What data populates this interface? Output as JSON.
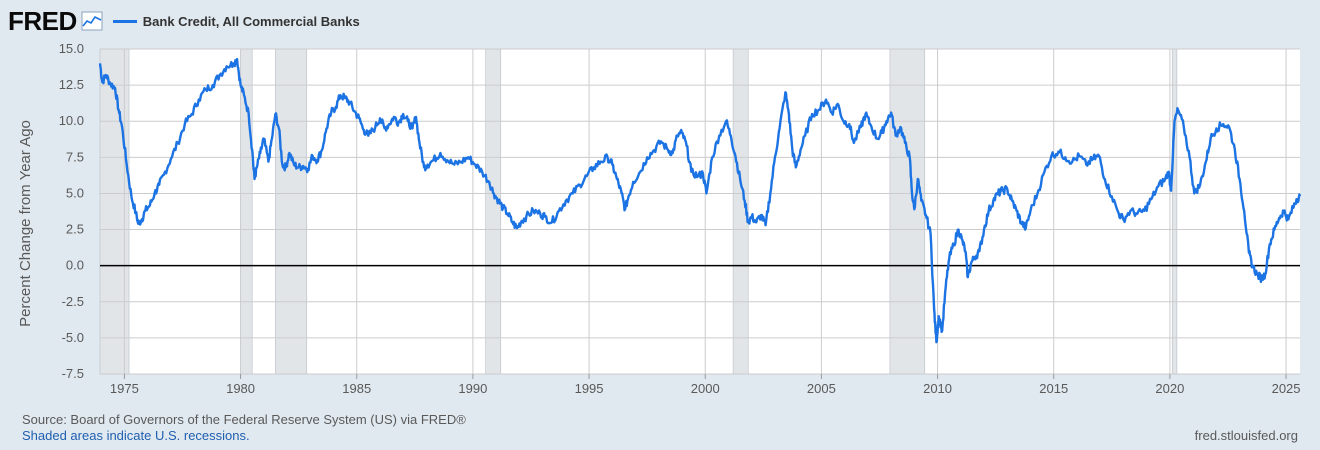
{
  "header": {
    "logo_text": "FRED",
    "logo_icon": "line-chart-icon",
    "series_label": "Bank Credit, All Commercial Banks"
  },
  "footer": {
    "source": "Source: Board of Governors of the Federal Reserve System (US) via FRED®",
    "recessions_note": "Shaded areas indicate U.S. recessions.",
    "site": "fred.stlouisfed.org"
  },
  "colors": {
    "series": "#1c73e3",
    "background": "#e1e9f0",
    "plot_bg": "#ffffff",
    "recession": "#e1e5e8",
    "grid": "#cccccc"
  },
  "chart_data": {
    "type": "line",
    "title": "",
    "xlabel": "",
    "ylabel": "Percent Change from Year Ago",
    "xlim": [
      1973.95,
      2025.6
    ],
    "ylim": [
      -7.5,
      15.0
    ],
    "grid": true,
    "legend_position": "top-left",
    "y_ticks": [
      "15.0",
      "12.5",
      "10.0",
      "7.5",
      "5.0",
      "2.5",
      "0.0",
      "-2.5",
      "-5.0",
      "-7.5"
    ],
    "x_ticks": [
      "1975",
      "1980",
      "1985",
      "1990",
      "1995",
      "2000",
      "2005",
      "2010",
      "2015",
      "2020",
      "2025"
    ],
    "zero_line": 0,
    "recessions": [
      [
        1973.95,
        1975.2
      ],
      [
        1980.0,
        1980.5
      ],
      [
        1981.5,
        1982.85
      ],
      [
        1990.55,
        1991.2
      ],
      [
        2001.2,
        2001.85
      ],
      [
        2007.95,
        2009.45
      ],
      [
        2020.1,
        2020.3
      ]
    ],
    "series": [
      {
        "name": "Bank Credit, All Commercial Banks",
        "points": [
          [
            1973.95,
            14.0
          ],
          [
            1974.05,
            12.7
          ],
          [
            1974.2,
            13.2
          ],
          [
            1974.4,
            12.6
          ],
          [
            1974.6,
            12.3
          ],
          [
            1974.75,
            10.8
          ],
          [
            1974.9,
            9.6
          ],
          [
            1975.1,
            7.0
          ],
          [
            1975.3,
            4.8
          ],
          [
            1975.5,
            3.6
          ],
          [
            1975.6,
            2.9
          ],
          [
            1975.75,
            3.2
          ],
          [
            1975.9,
            3.8
          ],
          [
            1976.1,
            4.2
          ],
          [
            1976.3,
            5.0
          ],
          [
            1976.5,
            5.6
          ],
          [
            1976.7,
            6.3
          ],
          [
            1977.0,
            7.4
          ],
          [
            1977.3,
            8.5
          ],
          [
            1977.6,
            9.8
          ],
          [
            1977.9,
            10.5
          ],
          [
            1978.2,
            11.5
          ],
          [
            1978.5,
            12.2
          ],
          [
            1978.8,
            12.5
          ],
          [
            1979.1,
            13.2
          ],
          [
            1979.4,
            13.8
          ],
          [
            1979.7,
            14.0
          ],
          [
            1979.85,
            14.3
          ],
          [
            1980.0,
            12.5
          ],
          [
            1980.15,
            11.8
          ],
          [
            1980.35,
            10.5
          ],
          [
            1980.5,
            8.0
          ],
          [
            1980.6,
            6.0
          ],
          [
            1980.7,
            6.8
          ],
          [
            1980.85,
            7.8
          ],
          [
            1981.0,
            8.8
          ],
          [
            1981.2,
            7.2
          ],
          [
            1981.35,
            8.8
          ],
          [
            1981.5,
            10.5
          ],
          [
            1981.65,
            9.5
          ],
          [
            1981.8,
            7.0
          ],
          [
            1981.95,
            6.8
          ],
          [
            1982.1,
            7.8
          ],
          [
            1982.3,
            7.0
          ],
          [
            1982.5,
            6.8
          ],
          [
            1982.7,
            6.9
          ],
          [
            1982.9,
            6.7
          ],
          [
            1983.1,
            7.6
          ],
          [
            1983.3,
            7.3
          ],
          [
            1983.5,
            8.0
          ],
          [
            1983.7,
            9.5
          ],
          [
            1983.9,
            10.6
          ],
          [
            1984.1,
            11.0
          ],
          [
            1984.3,
            11.8
          ],
          [
            1984.5,
            11.6
          ],
          [
            1984.7,
            11.3
          ],
          [
            1984.9,
            10.7
          ],
          [
            1985.1,
            10.2
          ],
          [
            1985.3,
            9.4
          ],
          [
            1985.5,
            9.0
          ],
          [
            1985.8,
            9.6
          ],
          [
            1986.0,
            10.2
          ],
          [
            1986.2,
            9.5
          ],
          [
            1986.4,
            9.8
          ],
          [
            1986.6,
            10.3
          ],
          [
            1986.8,
            9.9
          ],
          [
            1987.0,
            10.5
          ],
          [
            1987.2,
            10.0
          ],
          [
            1987.4,
            9.5
          ],
          [
            1987.55,
            10.3
          ],
          [
            1987.7,
            8.5
          ],
          [
            1987.9,
            6.8
          ],
          [
            1988.05,
            7.0
          ],
          [
            1988.3,
            7.3
          ],
          [
            1988.6,
            7.8
          ],
          [
            1988.9,
            7.3
          ],
          [
            1989.2,
            7.0
          ],
          [
            1989.5,
            7.2
          ],
          [
            1989.8,
            7.5
          ],
          [
            1990.1,
            7.0
          ],
          [
            1990.4,
            6.5
          ],
          [
            1990.7,
            5.8
          ],
          [
            1990.9,
            5.0
          ],
          [
            1991.1,
            4.5
          ],
          [
            1991.3,
            4.0
          ],
          [
            1991.5,
            3.6
          ],
          [
            1991.7,
            3.0
          ],
          [
            1991.9,
            2.6
          ],
          [
            1992.1,
            3.1
          ],
          [
            1992.3,
            3.4
          ],
          [
            1992.6,
            3.8
          ],
          [
            1992.9,
            3.6
          ],
          [
            1993.1,
            3.4
          ],
          [
            1993.4,
            3.0
          ],
          [
            1993.7,
            3.8
          ],
          [
            1994.0,
            4.5
          ],
          [
            1994.3,
            5.0
          ],
          [
            1994.6,
            5.6
          ],
          [
            1994.9,
            6.2
          ],
          [
            1995.2,
            6.8
          ],
          [
            1995.5,
            7.2
          ],
          [
            1995.8,
            7.5
          ],
          [
            1996.0,
            7.0
          ],
          [
            1996.2,
            6.0
          ],
          [
            1996.4,
            5.0
          ],
          [
            1996.55,
            3.9
          ],
          [
            1996.7,
            4.8
          ],
          [
            1996.9,
            5.8
          ],
          [
            1997.2,
            6.5
          ],
          [
            1997.5,
            7.5
          ],
          [
            1997.8,
            8.0
          ],
          [
            1998.1,
            8.6
          ],
          [
            1998.4,
            8.0
          ],
          [
            1998.6,
            7.8
          ],
          [
            1998.8,
            9.0
          ],
          [
            1999.0,
            9.2
          ],
          [
            1999.2,
            8.3
          ],
          [
            1999.4,
            6.5
          ],
          [
            1999.7,
            6.2
          ],
          [
            1999.9,
            6.4
          ],
          [
            2000.05,
            5.0
          ],
          [
            2000.3,
            7.5
          ],
          [
            2000.6,
            9.0
          ],
          [
            2000.9,
            10.0
          ],
          [
            2001.1,
            9.0
          ],
          [
            2001.3,
            7.6
          ],
          [
            2001.5,
            6.0
          ],
          [
            2001.7,
            4.5
          ],
          [
            2001.85,
            3.0
          ],
          [
            2002.0,
            3.4
          ],
          [
            2002.2,
            3.0
          ],
          [
            2002.4,
            3.5
          ],
          [
            2002.6,
            2.8
          ],
          [
            2002.8,
            5.0
          ],
          [
            2003.0,
            7.5
          ],
          [
            2003.2,
            9.5
          ],
          [
            2003.45,
            12.0
          ],
          [
            2003.6,
            10.5
          ],
          [
            2003.75,
            8.0
          ],
          [
            2003.9,
            6.8
          ],
          [
            2004.1,
            8.0
          ],
          [
            2004.3,
            9.0
          ],
          [
            2004.6,
            10.5
          ],
          [
            2004.9,
            10.8
          ],
          [
            2005.2,
            11.5
          ],
          [
            2005.45,
            10.6
          ],
          [
            2005.7,
            11.2
          ],
          [
            2005.95,
            10.0
          ],
          [
            2006.2,
            9.8
          ],
          [
            2006.4,
            8.5
          ],
          [
            2006.7,
            9.6
          ],
          [
            2006.9,
            10.5
          ],
          [
            2007.1,
            9.8
          ],
          [
            2007.4,
            8.8
          ],
          [
            2007.6,
            9.2
          ],
          [
            2007.8,
            10.0
          ],
          [
            2008.0,
            10.6
          ],
          [
            2008.2,
            9.0
          ],
          [
            2008.4,
            9.6
          ],
          [
            2008.6,
            8.5
          ],
          [
            2008.8,
            7.5
          ],
          [
            2008.9,
            5.0
          ],
          [
            2009.0,
            3.9
          ],
          [
            2009.15,
            6.0
          ],
          [
            2009.3,
            4.5
          ],
          [
            2009.5,
            3.5
          ],
          [
            2009.7,
            2.2
          ],
          [
            2009.85,
            -3.0
          ],
          [
            2009.95,
            -5.3
          ],
          [
            2010.05,
            -3.5
          ],
          [
            2010.2,
            -4.5
          ],
          [
            2010.35,
            -1.5
          ],
          [
            2010.5,
            0.5
          ],
          [
            2010.7,
            1.5
          ],
          [
            2010.9,
            2.5
          ],
          [
            2011.05,
            1.8
          ],
          [
            2011.2,
            1.0
          ],
          [
            2011.3,
            -0.8
          ],
          [
            2011.45,
            0.2
          ],
          [
            2011.6,
            0.6
          ],
          [
            2011.8,
            1.0
          ],
          [
            2012.0,
            2.5
          ],
          [
            2012.2,
            3.8
          ],
          [
            2012.4,
            4.5
          ],
          [
            2012.6,
            5.0
          ],
          [
            2012.8,
            5.2
          ],
          [
            2013.0,
            5.3
          ],
          [
            2013.2,
            4.5
          ],
          [
            2013.4,
            3.8
          ],
          [
            2013.6,
            3.0
          ],
          [
            2013.8,
            2.6
          ],
          [
            2014.0,
            3.8
          ],
          [
            2014.3,
            5.0
          ],
          [
            2014.6,
            6.5
          ],
          [
            2014.9,
            7.6
          ],
          [
            2015.2,
            7.9
          ],
          [
            2015.5,
            7.5
          ],
          [
            2015.8,
            7.2
          ],
          [
            2016.1,
            7.6
          ],
          [
            2016.4,
            7.0
          ],
          [
            2016.7,
            7.4
          ],
          [
            2016.95,
            7.6
          ],
          [
            2017.2,
            6.0
          ],
          [
            2017.5,
            4.8
          ],
          [
            2017.8,
            3.6
          ],
          [
            2018.0,
            3.2
          ],
          [
            2018.3,
            3.8
          ],
          [
            2018.6,
            3.6
          ],
          [
            2018.9,
            3.8
          ],
          [
            2019.2,
            4.6
          ],
          [
            2019.5,
            5.5
          ],
          [
            2019.8,
            6.0
          ],
          [
            2019.95,
            6.5
          ],
          [
            2020.05,
            5.2
          ],
          [
            2020.2,
            10.0
          ],
          [
            2020.35,
            10.8
          ],
          [
            2020.6,
            9.6
          ],
          [
            2020.85,
            7.5
          ],
          [
            2021.05,
            5.0
          ],
          [
            2021.3,
            5.6
          ],
          [
            2021.55,
            7.2
          ],
          [
            2021.75,
            8.8
          ],
          [
            2022.0,
            9.5
          ],
          [
            2022.3,
            9.8
          ],
          [
            2022.55,
            9.6
          ],
          [
            2022.8,
            8.0
          ],
          [
            2023.0,
            6.0
          ],
          [
            2023.2,
            3.8
          ],
          [
            2023.4,
            0.9
          ],
          [
            2023.55,
            0.0
          ],
          [
            2023.75,
            -0.6
          ],
          [
            2023.95,
            -0.9
          ],
          [
            2024.1,
            -0.6
          ],
          [
            2024.3,
            1.5
          ],
          [
            2024.5,
            2.5
          ],
          [
            2024.7,
            3.3
          ],
          [
            2024.9,
            3.8
          ],
          [
            2025.1,
            3.2
          ],
          [
            2025.3,
            4.0
          ],
          [
            2025.45,
            4.6
          ],
          [
            2025.6,
            4.8
          ]
        ]
      }
    ]
  }
}
